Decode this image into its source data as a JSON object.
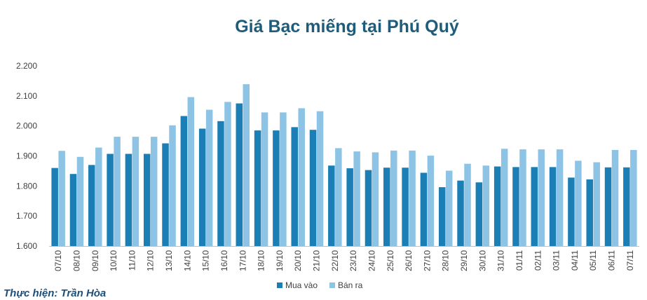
{
  "credit": "Thực hiện: Trần Hòa",
  "chart_data": {
    "type": "bar",
    "title": "Giá Bạc miếng tại Phú Quý",
    "xlabel": "",
    "ylabel": "",
    "ylim": [
      1600,
      2200
    ],
    "yticks": [
      1600,
      1700,
      1800,
      1900,
      2000,
      2100,
      2200
    ],
    "ytick_labels": [
      "1.600",
      "1.700",
      "1.800",
      "1.900",
      "2.000",
      "2.100",
      "2.200"
    ],
    "legend_position": "bottom",
    "grid": false,
    "categories": [
      "07/10",
      "08/10",
      "09/10",
      "10/10",
      "11/10",
      "12/10",
      "13/10",
      "14/10",
      "15/10",
      "16/10",
      "17/10",
      "18/10",
      "19/10",
      "20/10",
      "21/10",
      "22/10",
      "23/10",
      "24/10",
      "25/10",
      "26/10",
      "27/10",
      "28/10",
      "29/10",
      "30/10",
      "31/10",
      "01/11",
      "02/11",
      "03/11",
      "04/11",
      "05/11",
      "06/11",
      "07/11"
    ],
    "series": [
      {
        "name": "Mua vào",
        "color": "#1b7fb5",
        "values": [
          1860,
          1840,
          1870,
          1907,
          1907,
          1907,
          1942,
          2033,
          1991,
          2016,
          2075,
          1985,
          1985,
          1996,
          1987,
          1868,
          1859,
          1853,
          1861,
          1861,
          1844,
          1796,
          1818,
          1812,
          1865,
          1863,
          1863,
          1863,
          1828,
          1822,
          1862,
          1862
        ]
      },
      {
        "name": "Bán ra",
        "color": "#8dc4e6",
        "values": [
          1917,
          1897,
          1928,
          1964,
          1964,
          1964,
          2002,
          2096,
          2054,
          2080,
          2139,
          2045,
          2045,
          2059,
          2049,
          1926,
          1915,
          1912,
          1918,
          1918,
          1901,
          1851,
          1874,
          1868,
          1924,
          1922,
          1922,
          1922,
          1884,
          1879,
          1920,
          1920
        ]
      }
    ]
  }
}
